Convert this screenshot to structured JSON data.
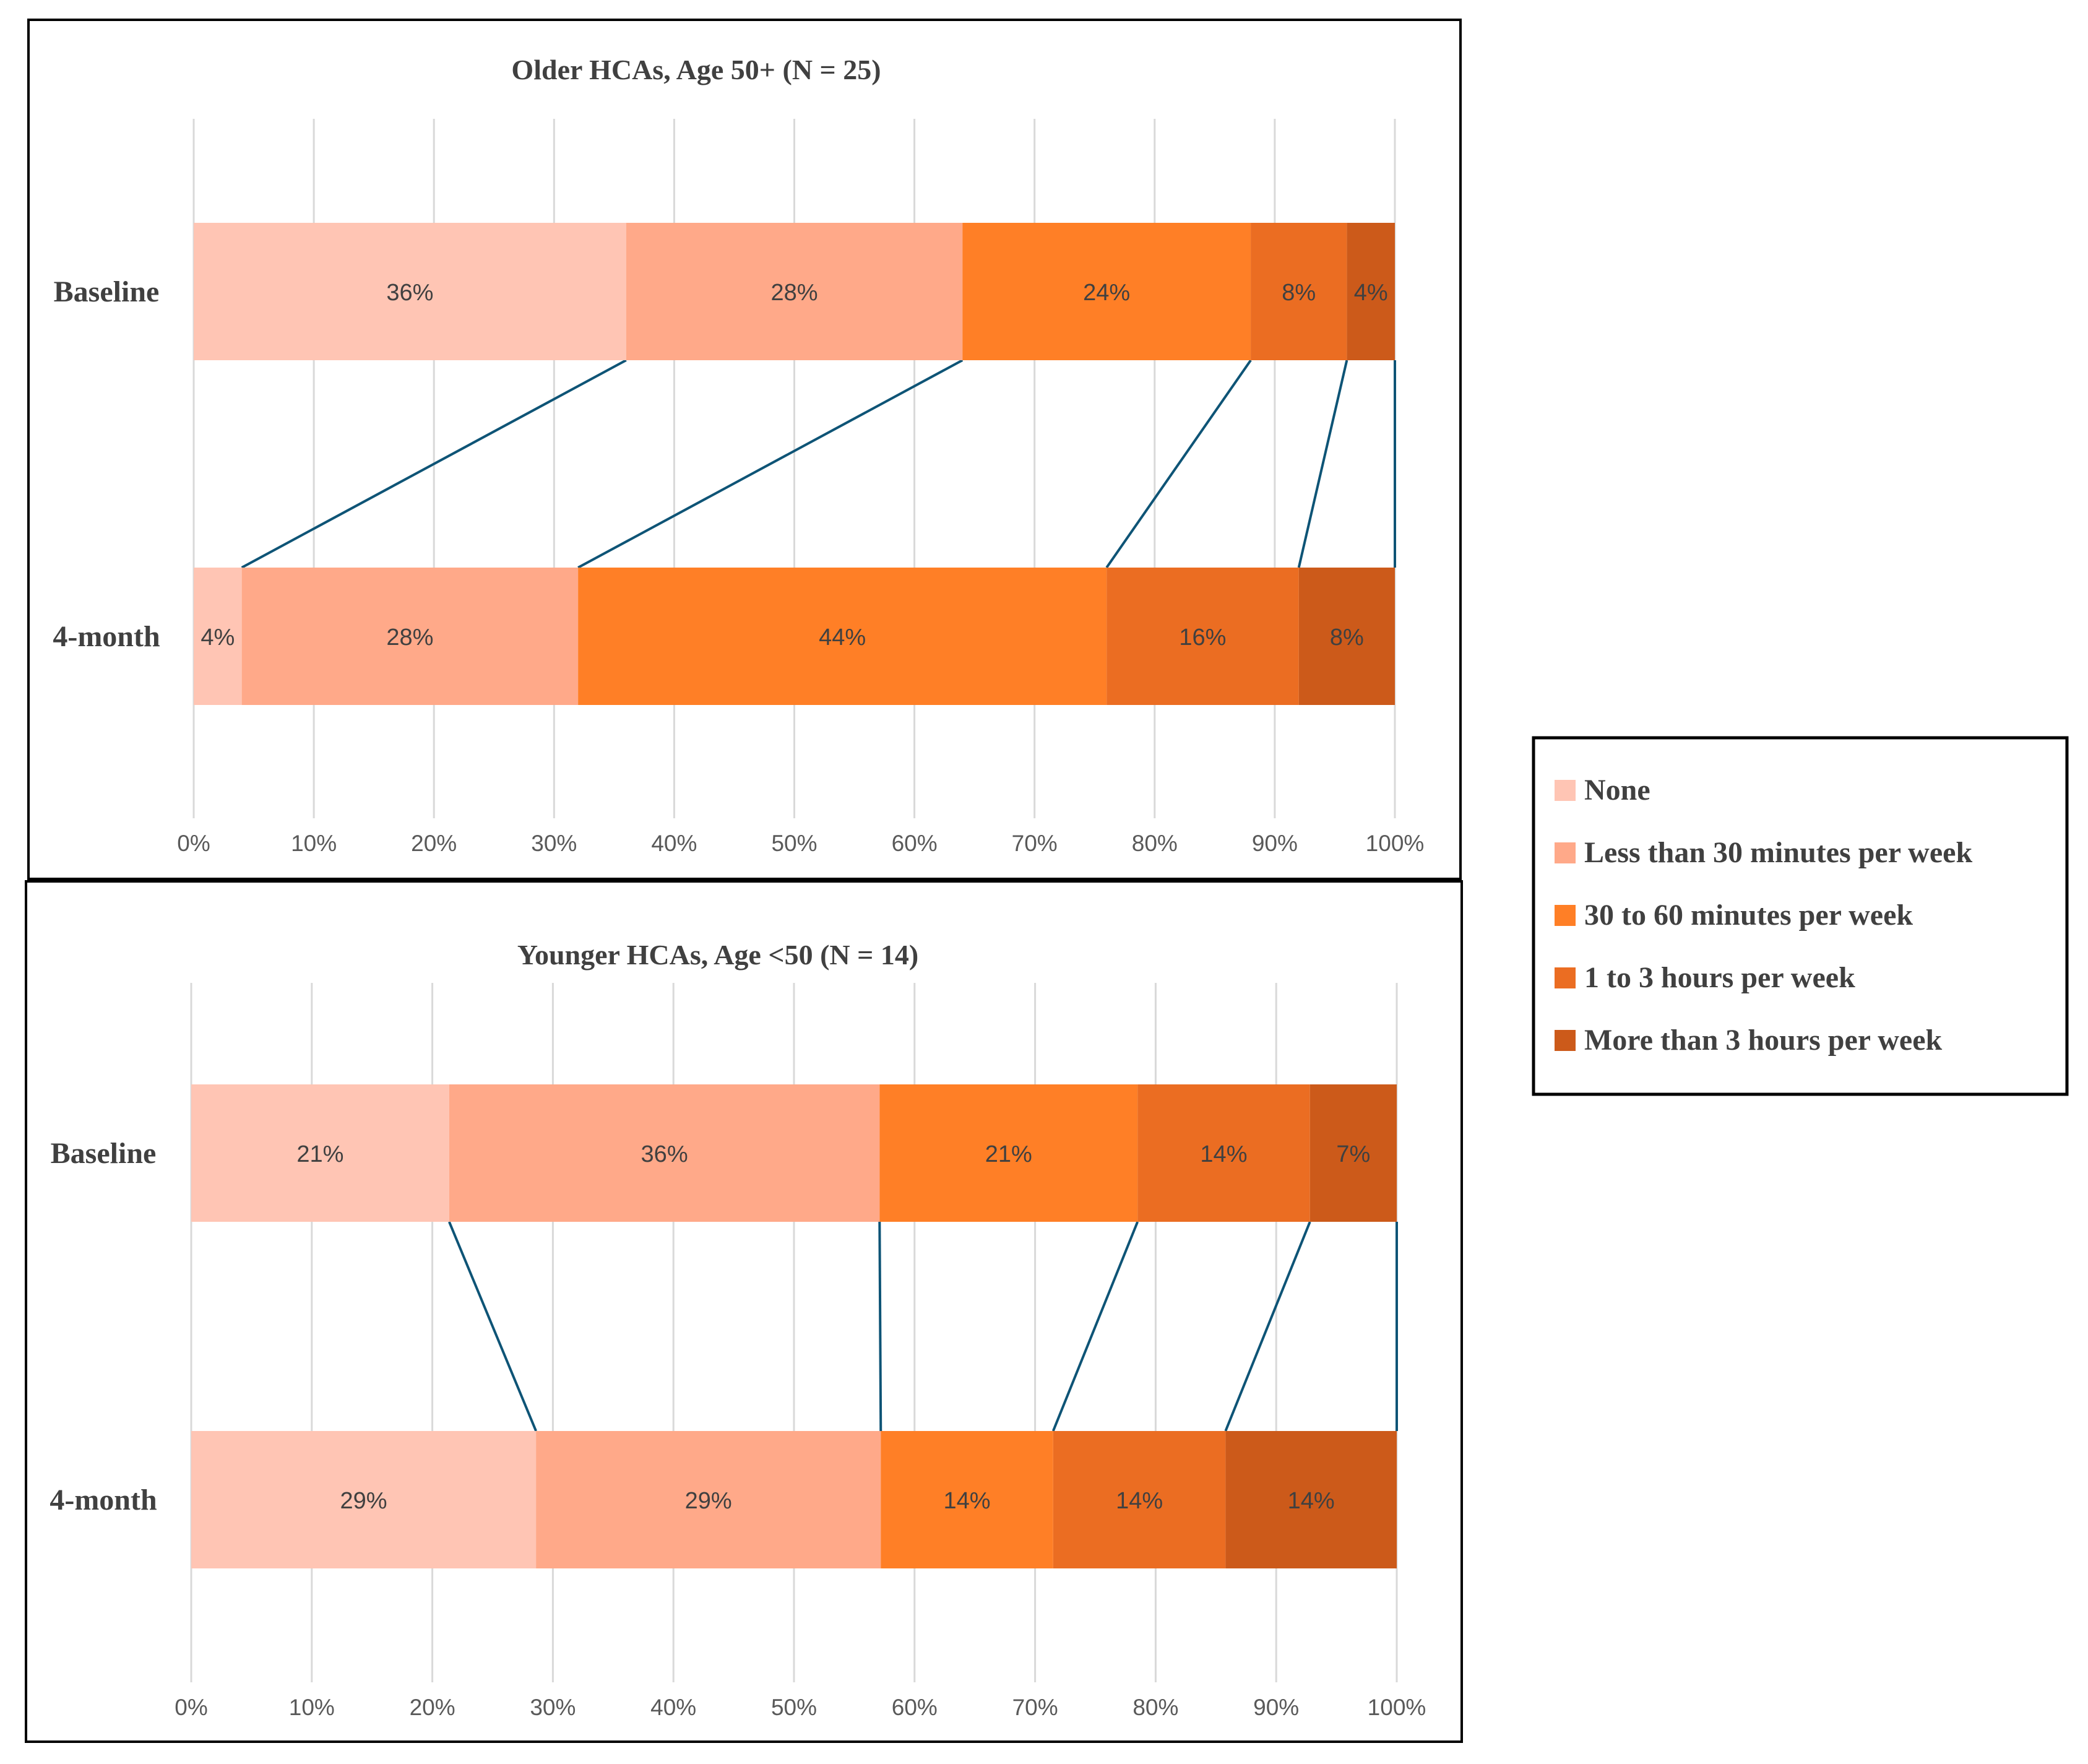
{
  "colors": {
    "none": "#FFC5B4",
    "less_30": "#FFA989",
    "30_60": "#FF7F26",
    "1_3": "#EB6D22",
    "more_3": "#CC5A1A",
    "connector": "#0E5476",
    "grid": "#D9D9D9",
    "frame": "#000000"
  },
  "legend": {
    "items": [
      {
        "label": "None",
        "color_key": "none"
      },
      {
        "label": "Less than 30 minutes per week",
        "color_key": "less_30"
      },
      {
        "label": "30 to 60 minutes per week",
        "color_key": "30_60"
      },
      {
        "label": "1 to 3 hours per week",
        "color_key": "1_3"
      },
      {
        "label": "More than 3 hours per week",
        "color_key": "more_3"
      }
    ]
  },
  "chart_data": [
    {
      "type": "bar",
      "stacked": true,
      "orientation": "horizontal",
      "title": "Older HCAs, Age 50+ (N = 25)",
      "categories": [
        "Baseline",
        "4-month"
      ],
      "xlim": [
        0,
        100
      ],
      "x_ticks": [
        "0%",
        "10%",
        "20%",
        "30%",
        "40%",
        "50%",
        "60%",
        "70%",
        "80%",
        "90%",
        "100%"
      ],
      "grid": true,
      "series": [
        {
          "name": "None",
          "values": [
            36,
            4
          ],
          "labels": [
            "36%",
            "4%"
          ]
        },
        {
          "name": "Less than 30 minutes per week",
          "values": [
            28,
            28
          ],
          "labels": [
            "28%",
            "28%"
          ]
        },
        {
          "name": "30 to 60 minutes per week",
          "values": [
            24,
            44
          ],
          "labels": [
            "24%",
            "44%"
          ]
        },
        {
          "name": "1 to 3 hours per week",
          "values": [
            8,
            16
          ],
          "labels": [
            "8%",
            "16%"
          ]
        },
        {
          "name": "More than 3 hours per week",
          "values": [
            4,
            8
          ],
          "labels": [
            "4%",
            "8%"
          ]
        }
      ]
    },
    {
      "type": "bar",
      "stacked": true,
      "orientation": "horizontal",
      "title": "Younger HCAs,  Age <50 (N = 14)",
      "categories": [
        "Baseline",
        "4-month"
      ],
      "xlim": [
        0,
        100
      ],
      "x_ticks": [
        "0%",
        "10%",
        "20%",
        "30%",
        "40%",
        "50%",
        "60%",
        "70%",
        "80%",
        "90%",
        "100%"
      ],
      "grid": true,
      "series": [
        {
          "name": "None",
          "values": [
            21.4,
            28.6
          ],
          "labels": [
            "21%",
            "29%"
          ]
        },
        {
          "name": "Less than 30 minutes per week",
          "values": [
            35.7,
            28.6
          ],
          "labels": [
            "36%",
            "29%"
          ]
        },
        {
          "name": "30 to 60 minutes per week",
          "values": [
            21.4,
            14.3
          ],
          "labels": [
            "21%",
            "14%"
          ]
        },
        {
          "name": "1 to 3 hours per week",
          "values": [
            14.3,
            14.3
          ],
          "labels": [
            "14%",
            "14%"
          ]
        },
        {
          "name": "More than 3 hours per week",
          "values": [
            7.2,
            14.2
          ],
          "labels": [
            "7%",
            "14%"
          ]
        }
      ]
    }
  ]
}
